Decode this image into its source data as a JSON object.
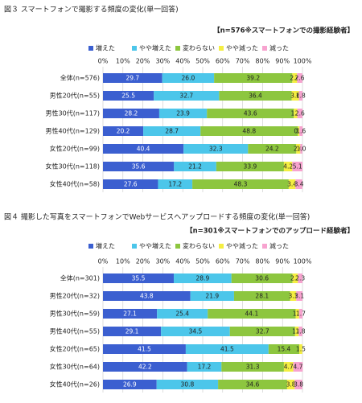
{
  "chart_data": [
    {
      "type": "bar",
      "title": "図３ スマートフォンで撮影する頻度の変化(単一回答)",
      "subtitle": "【n=576※スマートフォンでの撮影経験者】",
      "categories": [
        "全体(n=576)",
        "男性20代(n=55)",
        "男性30代(n=117)",
        "男性40代(n=129)",
        "女性20代(n=99)",
        "女性30代(n=118)",
        "女性40代(n=58)"
      ],
      "series": [
        {
          "name": "増えた",
          "color": "#3b5fd0",
          "values": [
            29.7,
            25.5,
            28.2,
            20.2,
            40.4,
            35.6,
            27.6
          ],
          "value_labels": [
            "29.7",
            "25.5",
            "28.2",
            "20.2",
            "40.4",
            "35.6",
            "27.6"
          ]
        },
        {
          "name": "やや増えた",
          "color": "#4cc6ea",
          "values": [
            26,
            32.7,
            23.9,
            28.7,
            32.3,
            21.2,
            17.2
          ],
          "value_labels": [
            "26.0",
            "32.7",
            "23.9",
            "28.7",
            "32.3",
            "21.2",
            "17.2"
          ]
        },
        {
          "name": "変わらない",
          "color": "#8dc63f",
          "values": [
            39.2,
            36.4,
            43.6,
            48.8,
            24.2,
            33.9,
            48.3
          ],
          "value_labels": [
            "39.2",
            "36.4",
            "43.6",
            "48.8",
            "24.2",
            "33.9",
            "48.3"
          ]
        },
        {
          "name": "やや減った",
          "color": "#f4ee42",
          "values": [
            2.4,
            3.6,
            1.7,
            0.8,
            2,
            4.2,
            3.4
          ],
          "value_labels": [
            "2.4",
            "3.6",
            "1.7",
            "0.8",
            "2.0",
            "4.2",
            "3.4"
          ]
        },
        {
          "name": "減った",
          "color": "#f7a3cf",
          "values": [
            2.6,
            1.8,
            2.6,
            1.6,
            1,
            5.1,
            3.4
          ],
          "value_labels": [
            "2.6",
            "1.8",
            "2.6",
            "1.6",
            "1.0",
            "5.1",
            "3.4"
          ]
        }
      ],
      "xlim": [
        0,
        100
      ],
      "xticks": [
        {
          "value": 0,
          "label": "0%"
        },
        {
          "value": 10,
          "label": "10%"
        },
        {
          "value": 20,
          "label": "20%"
        },
        {
          "value": 30,
          "label": "30%"
        },
        {
          "value": 40,
          "label": "40%"
        },
        {
          "value": 50,
          "label": "50%"
        },
        {
          "value": 60,
          "label": "60%"
        },
        {
          "value": 70,
          "label": "70%"
        },
        {
          "value": 80,
          "label": "80%"
        },
        {
          "value": 90,
          "label": "90%"
        },
        {
          "value": 100,
          "label": "100%"
        }
      ],
      "grid": true
    },
    {
      "type": "bar",
      "title": "図４ 撮影した写真をスマートフォンでWebサービスへアップロードする頻度の変化(単一回答)",
      "subtitle": "【n=301※スマートフォンでのアップロード経験者】",
      "categories": [
        "全体(n=301)",
        "男性20代(n=32)",
        "男性30代(n=59)",
        "男性40代(n=55)",
        "女性20代(n=65)",
        "女性30代(n=64)",
        "女性40代(n=26)"
      ],
      "series": [
        {
          "name": "増えた",
          "color": "#3b5fd0",
          "values": [
            35.5,
            43.8,
            27.1,
            29.1,
            41.5,
            42.2,
            26.9
          ],
          "value_labels": [
            "35.5",
            "43.8",
            "27.1",
            "29.1",
            "41.5",
            "42.2",
            "26.9"
          ]
        },
        {
          "name": "やや増えた",
          "color": "#4cc6ea",
          "values": [
            28.9,
            21.9,
            25.4,
            34.5,
            41.5,
            17.2,
            30.8
          ],
          "value_labels": [
            "28.9",
            "21.9",
            "25.4",
            "34.5",
            "41.5",
            "17.2",
            "30.8"
          ]
        },
        {
          "name": "変わらない",
          "color": "#8dc63f",
          "values": [
            30.6,
            28.1,
            44.1,
            32.7,
            15.4,
            31.3,
            34.6
          ],
          "value_labels": [
            "30.6",
            "28.1",
            "44.1",
            "32.7",
            "15.4",
            "31.3",
            "34.6"
          ]
        },
        {
          "name": "やや減った",
          "color": "#f4ee42",
          "values": [
            2.7,
            3.1,
            1.7,
            1.8,
            1.5,
            4.7,
            3.8
          ],
          "value_labels": [
            "2.7",
            "3.1",
            "1.7",
            "1.8",
            "1.5",
            "4.7",
            "3.8"
          ]
        },
        {
          "name": "減った",
          "color": "#f7a3cf",
          "values": [
            2.3,
            3.1,
            1.7,
            1.8,
            0,
            4.7,
            3.8
          ],
          "value_labels": [
            "2.3",
            "3.1",
            "1.7",
            "1.8",
            null,
            "4.7",
            "3.8"
          ]
        }
      ],
      "xlim": [
        0,
        100
      ],
      "xticks": [
        {
          "value": 0,
          "label": "0%"
        },
        {
          "value": 10,
          "label": "10%"
        },
        {
          "value": 20,
          "label": "20%"
        },
        {
          "value": 30,
          "label": "30%"
        },
        {
          "value": 40,
          "label": "40%"
        },
        {
          "value": 50,
          "label": "50%"
        },
        {
          "value": 60,
          "label": "60%"
        },
        {
          "value": 70,
          "label": "70%"
        },
        {
          "value": 80,
          "label": "80%"
        },
        {
          "value": 90,
          "label": "90%"
        },
        {
          "value": 100,
          "label": "100%"
        }
      ],
      "grid": true
    }
  ]
}
